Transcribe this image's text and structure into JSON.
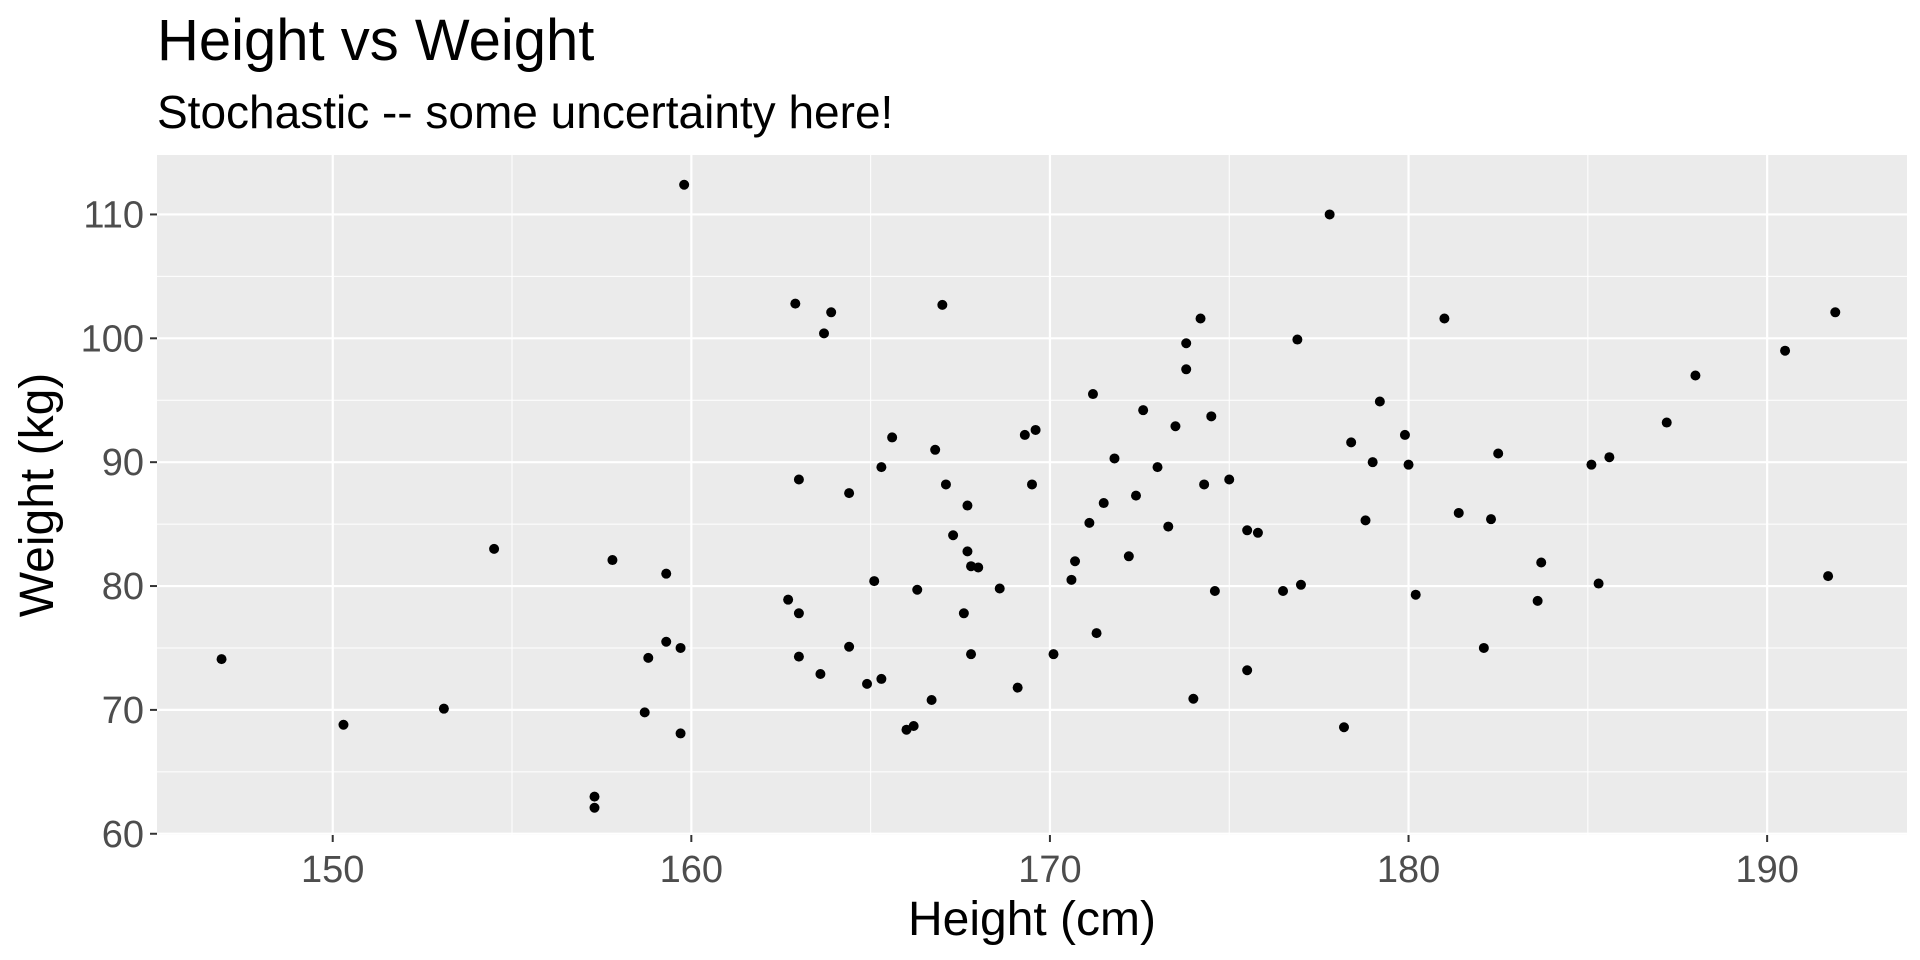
{
  "chart_data": {
    "type": "scatter",
    "title": "Height vs Weight",
    "subtitle": "Stochastic -- some uncertainty here!",
    "xlabel": "Height (cm)",
    "ylabel": "Weight (kg)",
    "xlim": [
      145.1,
      193.9
    ],
    "ylim": [
      59.9,
      114.8
    ],
    "x_ticks": [
      150,
      160,
      170,
      180,
      190
    ],
    "y_ticks": [
      60,
      70,
      80,
      90,
      100,
      110
    ],
    "x_tick_labels": [
      "150",
      "160",
      "170",
      "180",
      "190"
    ],
    "y_tick_labels": [
      "60",
      "70",
      "80",
      "90",
      "100",
      "110"
    ],
    "grid": true,
    "legend": "none",
    "colors": {
      "panel": "#ebebeb",
      "grid": "#ffffff",
      "point": "#000000",
      "tick_text": "#4d4d4d"
    },
    "points": [
      {
        "x": 146.9,
        "y": 74.1
      },
      {
        "x": 150.3,
        "y": 68.8
      },
      {
        "x": 153.1,
        "y": 70.1
      },
      {
        "x": 154.5,
        "y": 83.0
      },
      {
        "x": 157.3,
        "y": 63.0
      },
      {
        "x": 157.3,
        "y": 62.1
      },
      {
        "x": 157.8,
        "y": 82.1
      },
      {
        "x": 158.7,
        "y": 69.8
      },
      {
        "x": 158.8,
        "y": 74.2
      },
      {
        "x": 159.3,
        "y": 75.5
      },
      {
        "x": 159.3,
        "y": 81.0
      },
      {
        "x": 159.7,
        "y": 75.0
      },
      {
        "x": 159.7,
        "y": 68.1
      },
      {
        "x": 159.8,
        "y": 112.4
      },
      {
        "x": 162.7,
        "y": 78.9
      },
      {
        "x": 162.9,
        "y": 102.8
      },
      {
        "x": 163.0,
        "y": 88.6
      },
      {
        "x": 163.0,
        "y": 77.8
      },
      {
        "x": 163.0,
        "y": 74.3
      },
      {
        "x": 163.6,
        "y": 72.9
      },
      {
        "x": 163.7,
        "y": 100.4
      },
      {
        "x": 163.9,
        "y": 102.1
      },
      {
        "x": 164.4,
        "y": 75.1
      },
      {
        "x": 164.4,
        "y": 87.5
      },
      {
        "x": 164.9,
        "y": 72.1
      },
      {
        "x": 165.1,
        "y": 80.4
      },
      {
        "x": 165.3,
        "y": 72.5
      },
      {
        "x": 165.3,
        "y": 89.6
      },
      {
        "x": 165.6,
        "y": 92.0
      },
      {
        "x": 166.0,
        "y": 68.4
      },
      {
        "x": 166.2,
        "y": 68.7
      },
      {
        "x": 166.3,
        "y": 79.7
      },
      {
        "x": 166.7,
        "y": 70.8
      },
      {
        "x": 166.8,
        "y": 91.0
      },
      {
        "x": 167.0,
        "y": 102.7
      },
      {
        "x": 167.1,
        "y": 88.2
      },
      {
        "x": 167.3,
        "y": 84.1
      },
      {
        "x": 167.6,
        "y": 77.8
      },
      {
        "x": 167.7,
        "y": 82.8
      },
      {
        "x": 167.7,
        "y": 86.5
      },
      {
        "x": 167.8,
        "y": 74.5
      },
      {
        "x": 167.8,
        "y": 81.6
      },
      {
        "x": 168.0,
        "y": 81.5
      },
      {
        "x": 168.6,
        "y": 79.8
      },
      {
        "x": 169.1,
        "y": 71.8
      },
      {
        "x": 169.3,
        "y": 92.2
      },
      {
        "x": 169.5,
        "y": 88.2
      },
      {
        "x": 169.6,
        "y": 92.6
      },
      {
        "x": 170.1,
        "y": 74.5
      },
      {
        "x": 170.6,
        "y": 80.5
      },
      {
        "x": 170.7,
        "y": 82.0
      },
      {
        "x": 171.1,
        "y": 85.1
      },
      {
        "x": 171.2,
        "y": 95.5
      },
      {
        "x": 171.3,
        "y": 76.2
      },
      {
        "x": 171.5,
        "y": 86.7
      },
      {
        "x": 171.8,
        "y": 90.3
      },
      {
        "x": 172.2,
        "y": 82.4
      },
      {
        "x": 172.4,
        "y": 87.3
      },
      {
        "x": 172.6,
        "y": 94.2
      },
      {
        "x": 173.0,
        "y": 89.6
      },
      {
        "x": 173.3,
        "y": 84.8
      },
      {
        "x": 173.5,
        "y": 92.9
      },
      {
        "x": 173.8,
        "y": 97.5
      },
      {
        "x": 173.8,
        "y": 99.6
      },
      {
        "x": 174.0,
        "y": 70.9
      },
      {
        "x": 174.2,
        "y": 101.6
      },
      {
        "x": 174.3,
        "y": 88.2
      },
      {
        "x": 174.5,
        "y": 93.7
      },
      {
        "x": 174.6,
        "y": 79.6
      },
      {
        "x": 175.0,
        "y": 88.6
      },
      {
        "x": 175.5,
        "y": 84.5
      },
      {
        "x": 175.5,
        "y": 73.2
      },
      {
        "x": 175.8,
        "y": 84.3
      },
      {
        "x": 176.5,
        "y": 79.6
      },
      {
        "x": 176.9,
        "y": 99.9
      },
      {
        "x": 177.0,
        "y": 80.1
      },
      {
        "x": 177.8,
        "y": 110.0
      },
      {
        "x": 178.2,
        "y": 68.6
      },
      {
        "x": 178.4,
        "y": 91.6
      },
      {
        "x": 178.8,
        "y": 85.3
      },
      {
        "x": 179.0,
        "y": 90.0
      },
      {
        "x": 179.2,
        "y": 94.9
      },
      {
        "x": 179.9,
        "y": 92.2
      },
      {
        "x": 180.0,
        "y": 89.8
      },
      {
        "x": 180.2,
        "y": 79.3
      },
      {
        "x": 181.0,
        "y": 101.6
      },
      {
        "x": 181.4,
        "y": 85.9
      },
      {
        "x": 182.1,
        "y": 75.0
      },
      {
        "x": 182.3,
        "y": 85.4
      },
      {
        "x": 182.5,
        "y": 90.7
      },
      {
        "x": 183.6,
        "y": 78.8
      },
      {
        "x": 183.7,
        "y": 81.9
      },
      {
        "x": 185.1,
        "y": 89.8
      },
      {
        "x": 185.3,
        "y": 80.2
      },
      {
        "x": 185.6,
        "y": 90.4
      },
      {
        "x": 187.2,
        "y": 93.2
      },
      {
        "x": 188.0,
        "y": 97.0
      },
      {
        "x": 190.5,
        "y": 99.0
      },
      {
        "x": 191.7,
        "y": 80.8
      },
      {
        "x": 191.9,
        "y": 102.1
      }
    ]
  }
}
